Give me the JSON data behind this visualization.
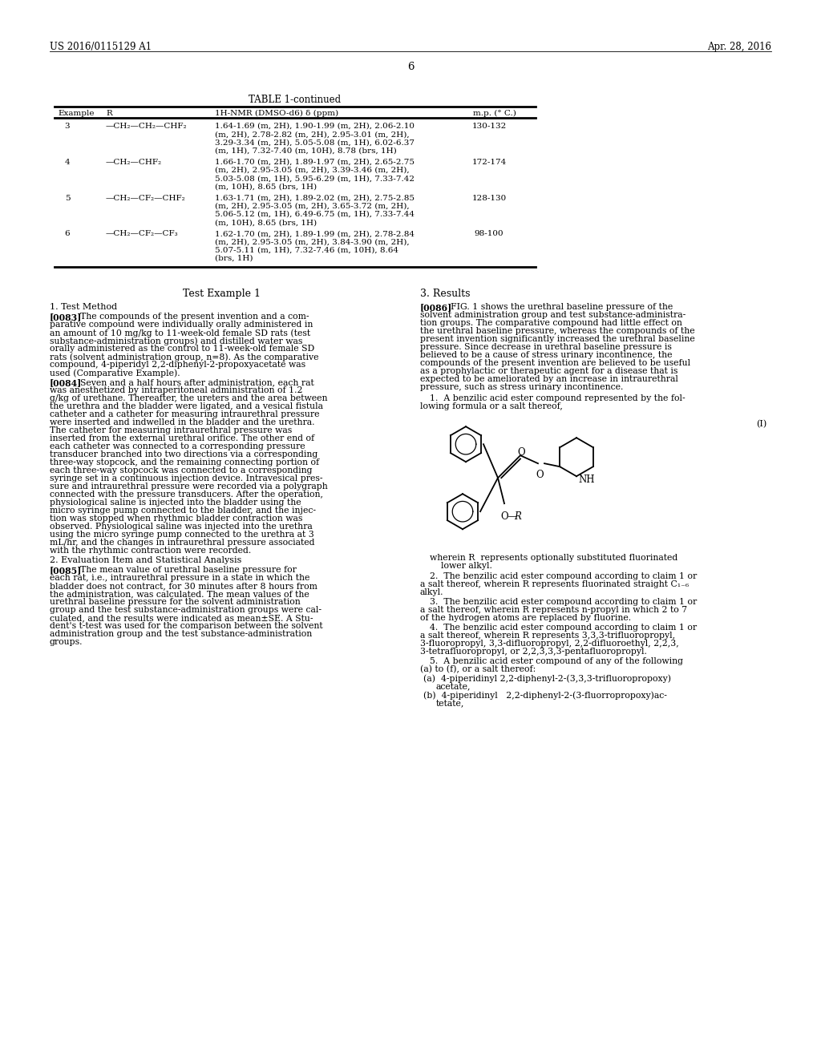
{
  "header_left": "US 2016/0115129 A1",
  "header_right": "Apr. 28, 2016",
  "page_number": "6",
  "table_title": "TABLE 1-continued",
  "table_col0": "Example",
  "table_col1": "R",
  "table_col2": "1H-NMR (DMSO-d6) δ (ppm)",
  "table_col3": "m.p. (° C.)",
  "rows": [
    {
      "ex": "3",
      "R": "—CH₂—CH₂—CHF₂",
      "nmr": [
        "1.64-1.69 (m, 2H), 1.90-1.99 (m, 2H), 2.06-2.10",
        "(m, 2H), 2.78-2.82 (m, 2H), 2.95-3.01 (m, 2H),",
        "3.29-3.34 (m, 2H), 5.05-5.08 (m, 1H), 6.02-6.37",
        "(m, 1H), 7.32-7.40 (m, 10H), 8.78 (brs, 1H)"
      ],
      "mp": "130-132"
    },
    {
      "ex": "4",
      "R": "—CH₂—CHF₂",
      "nmr": [
        "1.66-1.70 (m, 2H), 1.89-1.97 (m, 2H), 2.65-2.75",
        "(m, 2H), 2.95-3.05 (m, 2H), 3.39-3.46 (m, 2H),",
        "5.03-5.08 (m, 1H), 5.95-6.29 (m, 1H), 7.33-7.42",
        "(m, 10H), 8.65 (brs, 1H)"
      ],
      "mp": "172-174"
    },
    {
      "ex": "5",
      "R": "—CH₂—CF₂—CHF₂",
      "nmr": [
        "1.63-1.71 (m, 2H), 1.89-2.02 (m, 2H), 2.75-2.85",
        "(m, 2H), 2.95-3.05 (m, 2H), 3.65-3.72 (m, 2H),",
        "5.06-5.12 (m, 1H), 6.49-6.75 (m, 1H), 7.33-7.44",
        "(m, 10H), 8.65 (brs, 1H)"
      ],
      "mp": "128-130"
    },
    {
      "ex": "6",
      "R": "—CH₂—CF₂—CF₃",
      "nmr": [
        "1.62-1.70 (m, 2H), 1.89-1.99 (m, 2H), 2.78-2.84",
        "(m, 2H), 2.95-3.05 (m, 2H), 3.84-3.90 (m, 2H),",
        "5.07-5.11 (m, 1H), 7.32-7.46 (m, 10H), 8.64",
        "(brs, 1H)"
      ],
      "mp": "98-100"
    }
  ],
  "sec_title_left": "Test Example 1",
  "sec_title_right": "3. Results",
  "sub1": "1. Test Method",
  "p0083_tag": "[0083]",
  "p0083": [
    "The compounds of the present invention and a com-",
    "parative compound were individually orally administered in",
    "an amount of 10 mg/kg to 11-week-old female SD rats (test",
    "substance-administration groups) and distilled water was",
    "orally administered as the control to 11-week-old female SD",
    "rats (solvent administration group, n=8). As the comparative",
    "compound, 4-piperidyl 2,2-diphenyl-2-propoxyacetate was",
    "used (Comparative Example)."
  ],
  "p0084_tag": "[0084]",
  "p0084": [
    "Seven and a half hours after administration, each rat",
    "was anesthetized by intraperitoneal administration of 1.2",
    "g/kg of urethane. Thereafter, the ureters and the area between",
    "the urethra and the bladder were ligated, and a vesical fistula",
    "catheter and a catheter for measuring intraurethral pressure",
    "were inserted and indwelled in the bladder and the urethra.",
    "The catheter for measuring intraurethral pressure was",
    "inserted from the external urethral orifice. The other end of",
    "each catheter was connected to a corresponding pressure",
    "transducer branched into two directions via a corresponding",
    "three-way stopcock, and the remaining connecting portion of",
    "each three-way stopcock was connected to a corresponding",
    "syringe set in a continuous injection device. Intravesical pres-",
    "sure and intraurethral pressure were recorded via a polygraph",
    "connected with the pressure transducers. After the operation,",
    "physiological saline is injected into the bladder using the",
    "micro syringe pump connected to the bladder, and the injec-",
    "tion was stopped when rhythmic bladder contraction was",
    "observed. Physiological saline was injected into the urethra",
    "using the micro syringe pump connected to the urethra at 3",
    "mL/hr, and the changes in intraurethral pressure associated",
    "with the rhythmic contraction were recorded."
  ],
  "sub2": "2. Evaluation Item and Statistical Analysis",
  "p0085_tag": "[0085]",
  "p0085": [
    "The mean value of urethral baseline pressure for",
    "each rat, i.e., intraurethral pressure in a state in which the",
    "bladder does not contract, for 30 minutes after 8 hours from",
    "the administration, was calculated. The mean values of the",
    "urethral baseline pressure for the solvent administration",
    "group and the test substance-administration groups were cal-",
    "culated, and the results were indicated as mean±SE. A Stu-",
    "dent's t-test was used for the comparison between the solvent",
    "administration group and the test substance-administration",
    "groups."
  ],
  "p0086_tag": "[0086]",
  "p0086": [
    "FIG. 1 shows the urethral baseline pressure of the",
    "solvent administration group and test substance-administra-",
    "tion groups. The comparative compound had little effect on",
    "the urethral baseline pressure, whereas the compounds of the",
    "present invention significantly increased the urethral baseline",
    "pressure. Since decrease in urethral baseline pressure is",
    "believed to be a cause of stress urinary incontinence, the",
    "compounds of the present invention are believed to be useful",
    "as a prophylactic or therapeutic agent for a disease that is",
    "expected to be ameliorated by an increase in intraurethral",
    "pressure, such as stress urinary incontinence."
  ],
  "claim1_lines": [
    "1.  A benzilic acid ester compound represented by the fol-",
    "lowing formula or a salt thereof,"
  ],
  "formula_label": "(I)",
  "wherein_lines": [
    "wherein R  represents optionally substituted fluorinated",
    "    lower alkyl."
  ],
  "claim2_lines": [
    "2.  The benzilic acid ester compound according to claim 1 or",
    "a salt thereof, wherein R represents fluorinated straight C₁₋₆",
    "alkyl."
  ],
  "claim3_lines": [
    "3.  The benzilic acid ester compound according to claim 1 or",
    "a salt thereof, wherein R represents n-propyl in which 2 to 7",
    "of the hydrogen atoms are replaced by fluorine."
  ],
  "claim4_lines": [
    "4.  The benzilic acid ester compound according to claim 1 or",
    "a salt thereof, wherein R represents 3,3,3-trifluoropropyl,",
    "3-fluoropropyl, 3,3-difluoropropyl, 2,2-difluoroethyl, 2,2,3,",
    "3-tetrafluoropropyl, or 2,2,3,3,3-pentafluoropropyl."
  ],
  "claim5_lines": [
    "5.  A benzilic acid ester compound of any of the following",
    "(a) to (f), or a salt thereof:"
  ],
  "claim5a_lines": [
    "(a)  4-piperidinyl 2,2-diphenyl-2-(3,3,3-trifluoropropoxy)",
    "acetate,"
  ],
  "claim5b_lines": [
    "(b)  4-piperidinyl   2,2-diphenyl-2-(3-fluorropropoxy)ac-",
    "tetate,"
  ]
}
